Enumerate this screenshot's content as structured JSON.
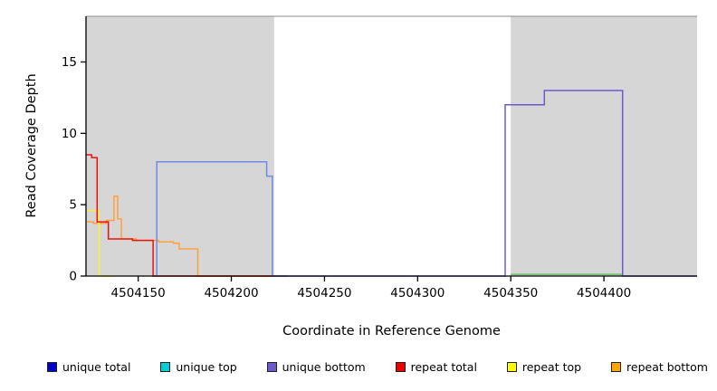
{
  "chart_data": {
    "type": "line",
    "title": "",
    "xlabel": "Coordinate in Reference Genome",
    "ylabel": "Read Coverage Depth",
    "xlim": [
      4504122,
      4504450
    ],
    "ylim": [
      0,
      18.2
    ],
    "xticks": [
      4504150,
      4504200,
      4504250,
      4504300,
      4504350,
      4504400
    ],
    "yticks": [
      0,
      5,
      10,
      15
    ],
    "grid": false,
    "legend_position": "bottom",
    "plot_background": "#ffffff",
    "shaded_region_color": "#d6d6d6",
    "top_border_color": "#8c8c8c",
    "axis_color": "#000000",
    "shaded_regions": [
      {
        "x0": 4504122,
        "x1": 4504223
      },
      {
        "x0": 4504350,
        "x1": 4504450
      }
    ],
    "series": [
      {
        "name": "repeat bottom",
        "color": "#FFA040",
        "points": [
          [
            4504122,
            3.8
          ],
          [
            4504126,
            3.8
          ],
          [
            4504126,
            3.7
          ],
          [
            4504133,
            3.7
          ],
          [
            4504133,
            3.9
          ],
          [
            4504137,
            3.9
          ],
          [
            4504137,
            5.6
          ],
          [
            4504139,
            5.6
          ],
          [
            4504139,
            4.0
          ],
          [
            4504141,
            4.0
          ],
          [
            4504141,
            2.6
          ],
          [
            4504149,
            2.6
          ],
          [
            4504149,
            2.5
          ],
          [
            4504161,
            2.5
          ],
          [
            4504161,
            2.4
          ],
          [
            4504169,
            2.4
          ],
          [
            4504169,
            2.3
          ],
          [
            4504172,
            2.3
          ],
          [
            4504172,
            1.9
          ],
          [
            4504182,
            1.9
          ],
          [
            4504182,
            0
          ],
          [
            4504223,
            0
          ]
        ]
      },
      {
        "name": "repeat top",
        "color": "#FFEE33",
        "points": [
          [
            4504122,
            4.6
          ],
          [
            4504129,
            4.6
          ],
          [
            4504129,
            0
          ],
          [
            4504137,
            0
          ]
        ]
      },
      {
        "name": "repeat total",
        "color": "#EE1111",
        "points": [
          [
            4504122,
            8.5
          ],
          [
            4504125,
            8.5
          ],
          [
            4504125,
            8.3
          ],
          [
            4504128,
            8.3
          ],
          [
            4504128,
            3.8
          ],
          [
            4504134,
            3.8
          ],
          [
            4504134,
            2.6
          ],
          [
            4504147,
            2.6
          ],
          [
            4504147,
            2.5
          ],
          [
            4504158,
            2.5
          ],
          [
            4504158,
            0
          ],
          [
            4504223,
            0
          ]
        ]
      },
      {
        "name": "unique total",
        "color": "#6C8CE8",
        "points": [
          [
            4504160,
            0
          ],
          [
            4504160,
            8
          ],
          [
            4504219,
            8
          ],
          [
            4504219,
            7
          ],
          [
            4504222,
            7
          ],
          [
            4504222,
            0
          ],
          [
            4504230,
            0
          ]
        ]
      },
      {
        "name": "unique top",
        "color": "#66C266",
        "points": [
          [
            4504350,
            0.12
          ],
          [
            4504410,
            0.12
          ]
        ]
      },
      {
        "name": "unique bottom",
        "color": "#6A5ACD",
        "points": [
          [
            4504223,
            0
          ],
          [
            4504347,
            0
          ],
          [
            4504347,
            12
          ],
          [
            4504368,
            12
          ],
          [
            4504368,
            13
          ],
          [
            4504410,
            13
          ],
          [
            4504410,
            0
          ],
          [
            4504450,
            0
          ]
        ]
      }
    ]
  },
  "legend": {
    "items": [
      {
        "label": "unique total",
        "color": "#0000CC"
      },
      {
        "label": "unique top",
        "color": "#00CED1"
      },
      {
        "label": "unique bottom",
        "color": "#6A5ACD"
      },
      {
        "label": "repeat total",
        "color": "#EE0000"
      },
      {
        "label": "repeat top",
        "color": "#FFFF00"
      },
      {
        "label": "repeat bottom",
        "color": "#FFA500"
      }
    ]
  }
}
